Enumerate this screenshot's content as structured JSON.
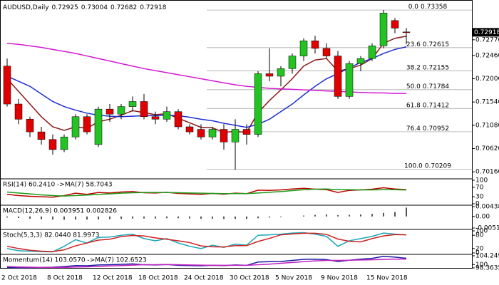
{
  "chart_data": [
    {
      "type": "candlestick",
      "title": "AUDUSD,Daily",
      "categories": [
        "2 Oct 2018",
        null,
        null,
        null,
        "8 Oct 2018",
        null,
        null,
        null,
        "12 Oct 2018",
        null,
        null,
        null,
        "18 Oct 2018",
        null,
        null,
        null,
        "24 Oct 2018",
        null,
        null,
        null,
        "30 Oct 2018",
        null,
        null,
        null,
        "5 Nov 2018",
        null,
        null,
        null,
        "9 Nov 2018",
        null,
        null,
        null,
        "15 Nov 2018",
        null,
        null,
        null
      ],
      "open": [
        0.7225,
        0.715,
        0.712,
        0.7095,
        0.708,
        0.706,
        0.7085,
        0.7125,
        0.707,
        0.714,
        0.713,
        0.7145,
        0.7155,
        0.7125,
        0.712,
        0.7135,
        0.7105,
        0.71,
        0.7085,
        0.71,
        0.7075,
        0.71,
        0.709,
        0.721,
        0.7205,
        0.722,
        0.7245,
        0.7275,
        0.726,
        0.7245,
        0.7165,
        0.723,
        0.724,
        0.7265,
        0.7315,
        0.72925
      ],
      "high": [
        0.724,
        0.716,
        0.7125,
        0.7105,
        0.709,
        0.709,
        0.713,
        0.713,
        0.7145,
        0.715,
        0.715,
        0.7165,
        0.717,
        0.7135,
        0.7145,
        0.714,
        0.711,
        0.711,
        0.7105,
        0.711,
        0.712,
        0.711,
        0.7215,
        0.726,
        0.7225,
        0.725,
        0.728,
        0.7285,
        0.727,
        0.7255,
        0.7235,
        0.7245,
        0.727,
        0.7336,
        0.732,
        0.73004
      ],
      "low": [
        0.7145,
        0.711,
        0.7085,
        0.707,
        0.705,
        0.7055,
        0.708,
        0.709,
        0.7065,
        0.7115,
        0.712,
        0.7135,
        0.712,
        0.711,
        0.7115,
        0.71,
        0.709,
        0.708,
        0.708,
        0.706,
        0.702,
        0.707,
        0.7085,
        0.7195,
        0.7185,
        0.721,
        0.7235,
        0.725,
        0.724,
        0.716,
        0.716,
        0.7215,
        0.7235,
        0.726,
        0.729,
        0.72682
      ],
      "close": [
        0.715,
        0.712,
        0.7095,
        0.708,
        0.706,
        0.7085,
        0.7125,
        0.7095,
        0.714,
        0.713,
        0.7145,
        0.7155,
        0.7125,
        0.712,
        0.7135,
        0.7105,
        0.7095,
        0.7085,
        0.71,
        0.7075,
        0.71,
        0.709,
        0.721,
        0.7205,
        0.722,
        0.7245,
        0.7275,
        0.726,
        0.7245,
        0.7165,
        0.723,
        0.724,
        0.7265,
        0.733,
        0.73,
        0.72918
      ],
      "up_color": "#22c322",
      "down_color": "#e00000",
      "series": [
        {
          "color": "#8b1a1a",
          "values": [
            0.72,
            0.7175,
            0.715,
            0.7125,
            0.7105,
            0.7098,
            0.7105,
            0.7102,
            0.7115,
            0.712,
            0.7128,
            0.7137,
            0.7133,
            0.7129,
            0.7131,
            0.7122,
            0.7113,
            0.7104,
            0.7103,
            0.7094,
            0.7096,
            0.7094,
            0.7133,
            0.7157,
            0.7178,
            0.72,
            0.7225,
            0.7237,
            0.724,
            0.7215,
            0.722,
            0.7227,
            0.724,
            0.727,
            0.728,
            0.7284
          ]
        },
        {
          "color": "#1f2fd0",
          "values": [
            0.7205,
            0.7195,
            0.7185,
            0.717,
            0.7155,
            0.7145,
            0.7138,
            0.7132,
            0.7128,
            0.7126,
            0.7125,
            0.7126,
            0.7127,
            0.7127,
            0.7128,
            0.7127,
            0.7124,
            0.712,
            0.7117,
            0.7112,
            0.7108,
            0.7104,
            0.711,
            0.712,
            0.7135,
            0.715,
            0.7168,
            0.7185,
            0.72,
            0.721,
            0.7222,
            0.7232,
            0.724,
            0.725,
            0.7258,
            0.7263
          ]
        },
        {
          "color": "#d11ad1",
          "values": [
            0.727,
            0.7268,
            0.7265,
            0.7262,
            0.7258,
            0.7254,
            0.725,
            0.7245,
            0.724,
            0.7235,
            0.723,
            0.7225,
            0.722,
            0.7216,
            0.7212,
            0.7208,
            0.7204,
            0.72,
            0.7196,
            0.7192,
            0.7188,
            0.7185,
            0.7183,
            0.7181,
            0.718,
            0.7179,
            0.7178,
            0.7177,
            0.7176,
            0.7175,
            0.7174,
            0.7173,
            0.7172,
            0.7172,
            0.7171,
            0.7171
          ]
        }
      ],
      "fib_levels": [
        {
          "label": "0.0",
          "value": 0.73358
        },
        {
          "label": "23.6",
          "value": 0.72615
        },
        {
          "label": "38.2",
          "value": 0.72155
        },
        {
          "label": "50.0",
          "value": 0.71784
        },
        {
          "label": "61.8",
          "value": 0.71412
        },
        {
          "label": "76.4",
          "value": 0.70952
        },
        {
          "label": "100.0",
          "value": 0.70209
        }
      ],
      "ylim": [
        0.7005,
        0.735
      ],
      "yticks": [
        {
          "value": 0.7277,
          "label": "0.72770"
        },
        {
          "value": 0.7246,
          "label": "0.72460"
        },
        {
          "value": 0.72,
          "label": "0.72000"
        },
        {
          "value": 0.7154,
          "label": "0.71540"
        },
        {
          "value": 0.7108,
          "label": "0.71080"
        },
        {
          "value": 0.7062,
          "label": "0.70620"
        },
        {
          "value": 0.7016,
          "label": "0.70160"
        }
      ]
    },
    {
      "type": "line",
      "title": "RSI(14) 60.2410 ->MA(7) 58.7043",
      "series": [
        {
          "color": "#c00000",
          "values": [
            40,
            35,
            32,
            30,
            28,
            35,
            45,
            40,
            48,
            46,
            50,
            52,
            47,
            46,
            49,
            44,
            42,
            40,
            44,
            41,
            45,
            43,
            58,
            57,
            59,
            63,
            66,
            62,
            60,
            48,
            57,
            59,
            62,
            68,
            63,
            60.241
          ]
        },
        {
          "color": "#1a9c1a",
          "values": [
            50,
            46,
            42,
            38,
            35,
            33,
            35,
            37,
            40,
            42,
            45,
            47,
            48,
            48,
            48,
            47,
            46,
            45,
            44,
            43,
            43,
            43,
            46,
            49,
            52,
            56,
            60,
            62,
            63,
            60,
            60,
            59,
            59,
            60,
            60,
            58.7043
          ]
        }
      ],
      "ylim": [
        0,
        100
      ],
      "yticks": [
        100,
        70,
        30,
        0
      ]
    },
    {
      "type": "bar",
      "title": "MACD(12,26,9) 0.003951 0.002826",
      "color": "#555555",
      "values": [
        -0.0005,
        -0.0007,
        -0.001,
        -0.0012,
        -0.0014,
        -0.0015,
        -0.0014,
        -0.0014,
        -0.0013,
        -0.0012,
        -0.0011,
        -0.0009,
        -0.0009,
        -0.0009,
        -0.0008,
        -0.0008,
        -0.0009,
        -0.001,
        -0.001,
        -0.0011,
        -0.0011,
        -0.0011,
        -0.0008,
        -0.0005,
        -0.0003,
        0,
        0.0004,
        0.0007,
        0.0009,
        0.0006,
        0.0007,
        0.0009,
        0.0011,
        0.0016,
        0.002,
        0.003951
      ],
      "ylim": [
        -0.005144,
        0.004384
      ],
      "yticks": [
        0.004384,
        {
          "value": 0,
          "label": "0.00"
        },
        -0.005144
      ]
    },
    {
      "type": "line",
      "title": "Stoch(5,3,3) 82.0440 81.9973",
      "series": [
        {
          "color": "#1aa6b5",
          "values": [
            20,
            10,
            8,
            6,
            5,
            30,
            60,
            45,
            70,
            72,
            80,
            85,
            65,
            55,
            65,
            45,
            30,
            20,
            35,
            25,
            40,
            35,
            80,
            82,
            85,
            90,
            92,
            85,
            75,
            30,
            55,
            65,
            75,
            90,
            85,
            82.044
          ]
        },
        {
          "color": "#d02020",
          "values": [
            30,
            20,
            12,
            8,
            6,
            14,
            32,
            45,
            58,
            62,
            74,
            79,
            77,
            68,
            62,
            55,
            47,
            32,
            28,
            27,
            33,
            33,
            52,
            66,
            82,
            86,
            89,
            89,
            84,
            63,
            53,
            50,
            65,
            77,
            83,
            81.9973
          ]
        }
      ],
      "ylim": [
        0,
        100
      ],
      "yticks": [
        100,
        80,
        20,
        0
      ]
    },
    {
      "type": "line",
      "title": "Momentum(14) 103.0570 ->MA(7) 102.6523",
      "series": [
        {
          "color": "#1a1aa0",
          "values": [
            98.6,
            98.4,
            98.5,
            98.6,
            98.7,
            99,
            99.5,
            99.4,
            99.8,
            99.9,
            100.1,
            100.3,
            99.9,
            99.8,
            100,
            99.6,
            99.5,
            99.4,
            99.6,
            99.5,
            99.8,
            99.6,
            101.2,
            101.4,
            101.5,
            102,
            102.5,
            102.6,
            102.4,
            101.5,
            102.1,
            102.6,
            103,
            104,
            103.6,
            103.057
          ]
        },
        {
          "color": "#c020c0",
          "values": [
            99,
            98.8,
            98.7,
            98.6,
            98.6,
            98.6,
            98.8,
            98.9,
            99.1,
            99.3,
            99.5,
            99.7,
            99.9,
            99.9,
            100,
            99.9,
            99.8,
            99.7,
            99.6,
            99.6,
            99.6,
            99.6,
            99.9,
            100.2,
            100.6,
            101,
            101.4,
            101.8,
            102,
            102,
            102.1,
            102.2,
            102.3,
            102.5,
            102.6,
            102.6523
          ]
        }
      ],
      "ylim": [
        98.3635,
        104.2493
      ],
      "yticks": [
        104.2493,
        100,
        98.3635
      ]
    }
  ]
}
